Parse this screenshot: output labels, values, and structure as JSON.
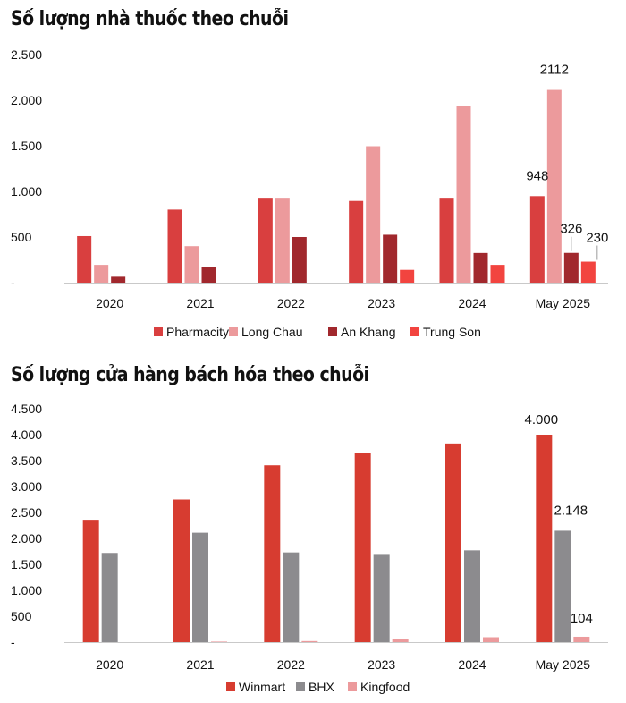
{
  "chart_data": [
    {
      "type": "bar",
      "title": "Số lượng nhà thuốc theo chuỗi",
      "categories": [
        "2020",
        "2021",
        "2022",
        "2023",
        "2024",
        "May 2025"
      ],
      "series": [
        {
          "name": "Pharmacity",
          "color": "#d93f3f",
          "values": [
            510,
            800,
            930,
            895,
            930,
            948
          ]
        },
        {
          "name": "Long Chau",
          "color": "#ec9a9c",
          "values": [
            195,
            400,
            930,
            1495,
            1940,
            2112
          ]
        },
        {
          "name": "An Khang",
          "color": "#a1282d",
          "values": [
            65,
            175,
            500,
            525,
            325,
            326
          ]
        },
        {
          "name": "Trung Son",
          "color": "#f2443f",
          "values": [
            0,
            0,
            0,
            140,
            195,
            230
          ]
        }
      ],
      "yticks": [
        "-",
        "500",
        "1.000",
        "1.500",
        "2.000",
        "2.500"
      ],
      "ylim": [
        0,
        2500
      ],
      "grid": false,
      "legend": "bottom",
      "annotations": [
        {
          "series": 0,
          "category": 5,
          "text": "948"
        },
        {
          "series": 1,
          "category": 5,
          "text": "2112"
        },
        {
          "series": 2,
          "category": 5,
          "text": "326"
        },
        {
          "series": 3,
          "category": 5,
          "text": "230"
        }
      ]
    },
    {
      "type": "bar",
      "title": "Số lượng cửa hàng bách hóa theo chuỗi",
      "categories": [
        "2020",
        "2021",
        "2022",
        "2023",
        "2024",
        "May 2025"
      ],
      "series": [
        {
          "name": "Winmart",
          "color": "#d73c30",
          "values": [
            2360,
            2750,
            3410,
            3640,
            3830,
            4000
          ]
        },
        {
          "name": "BHX",
          "color": "#8c8b8e",
          "values": [
            1720,
            2110,
            1730,
            1700,
            1770,
            2148
          ]
        },
        {
          "name": "Kingfood",
          "color": "#ec9a9c",
          "values": [
            0,
            10,
            20,
            60,
            95,
            104
          ]
        }
      ],
      "yticks": [
        "-",
        "500",
        "1.000",
        "1.500",
        "2.000",
        "2.500",
        "3.000",
        "3.500",
        "4.000",
        "4.500"
      ],
      "ylim": [
        0,
        4500
      ],
      "grid": false,
      "legend": "bottom",
      "annotations": [
        {
          "series": 0,
          "category": 5,
          "text": "4.000"
        },
        {
          "series": 1,
          "category": 5,
          "text": "2.148"
        },
        {
          "series": 2,
          "category": 5,
          "text": "104"
        }
      ]
    }
  ]
}
